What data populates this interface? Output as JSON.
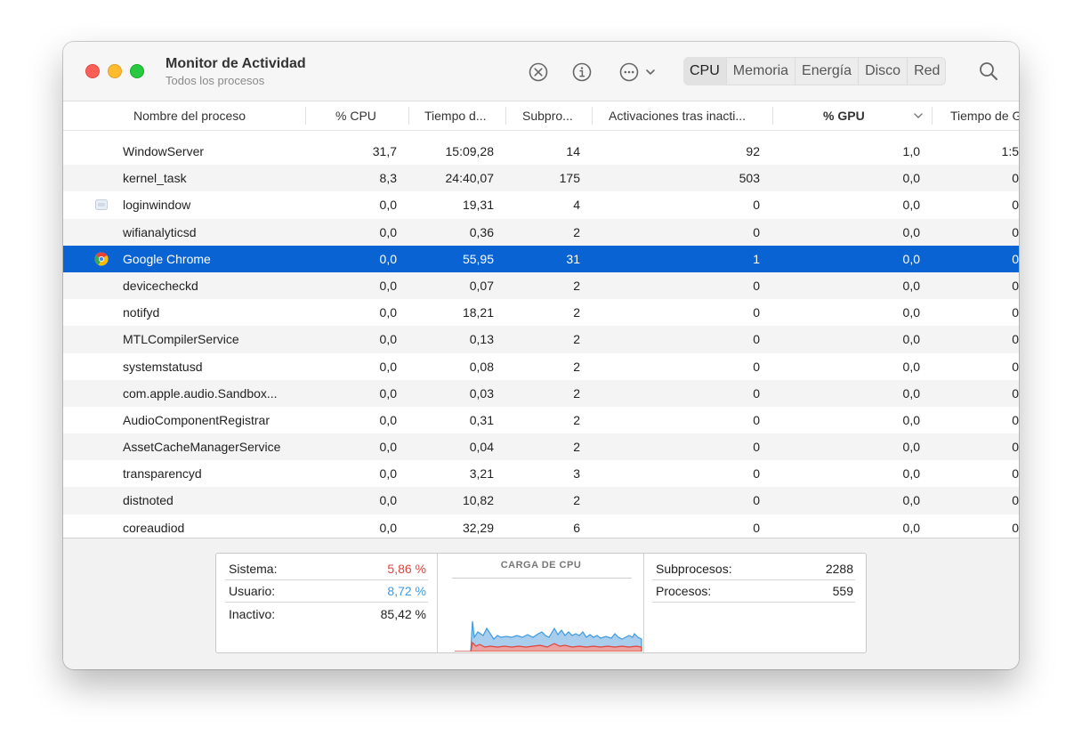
{
  "window": {
    "title": "Monitor de Actividad",
    "subtitle": "Todos los procesos"
  },
  "toolbar": {
    "stop_icon": "x-circle-icon",
    "info_icon": "info-icon",
    "more_icon": "ellipsis-circle-icon",
    "tabs": [
      "CPU",
      "Memoria",
      "Energía",
      "Disco",
      "Red"
    ],
    "active_tab": "CPU"
  },
  "columns": [
    "Nombre del proceso",
    "% CPU",
    "Tiempo d...",
    "Subpro...",
    "Activaciones tras inacti...",
    "% GPU",
    "Tiempo de G"
  ],
  "rows": [
    {
      "name": "WindowServer",
      "cpu": "31,7",
      "time": "15:09,28",
      "threads": "14",
      "wakeups": "92",
      "gpu": "1,0",
      "gputime": "1:5"
    },
    {
      "name": "kernel_task",
      "cpu": "8,3",
      "time": "24:40,07",
      "threads": "175",
      "wakeups": "503",
      "gpu": "0,0",
      "gputime": "0"
    },
    {
      "name": "loginwindow",
      "cpu": "0,0",
      "time": "19,31",
      "threads": "4",
      "wakeups": "0",
      "gpu": "0,0",
      "gputime": "0"
    },
    {
      "name": "wifianalyticsd",
      "cpu": "0,0",
      "time": "0,36",
      "threads": "2",
      "wakeups": "0",
      "gpu": "0,0",
      "gputime": "0"
    },
    {
      "name": "Google Chrome",
      "cpu": "0,0",
      "time": "55,95",
      "threads": "31",
      "wakeups": "1",
      "gpu": "0,0",
      "gputime": "0"
    },
    {
      "name": "devicecheckd",
      "cpu": "0,0",
      "time": "0,07",
      "threads": "2",
      "wakeups": "0",
      "gpu": "0,0",
      "gputime": "0"
    },
    {
      "name": "notifyd",
      "cpu": "0,0",
      "time": "18,21",
      "threads": "2",
      "wakeups": "0",
      "gpu": "0,0",
      "gputime": "0"
    },
    {
      "name": "MTLCompilerService",
      "cpu": "0,0",
      "time": "0,13",
      "threads": "2",
      "wakeups": "0",
      "gpu": "0,0",
      "gputime": "0"
    },
    {
      "name": "systemstatusd",
      "cpu": "0,0",
      "time": "0,08",
      "threads": "2",
      "wakeups": "0",
      "gpu": "0,0",
      "gputime": "0"
    },
    {
      "name": "com.apple.audio.Sandbox...",
      "cpu": "0,0",
      "time": "0,03",
      "threads": "2",
      "wakeups": "0",
      "gpu": "0,0",
      "gputime": "0"
    },
    {
      "name": "AudioComponentRegistrar",
      "cpu": "0,0",
      "time": "0,31",
      "threads": "2",
      "wakeups": "0",
      "gpu": "0,0",
      "gputime": "0"
    },
    {
      "name": "AssetCacheManagerService",
      "cpu": "0,0",
      "time": "0,04",
      "threads": "2",
      "wakeups": "0",
      "gpu": "0,0",
      "gputime": "0"
    },
    {
      "name": "transparencyd",
      "cpu": "0,0",
      "time": "3,21",
      "threads": "3",
      "wakeups": "0",
      "gpu": "0,0",
      "gputime": "0"
    },
    {
      "name": "distnoted",
      "cpu": "0,0",
      "time": "10,82",
      "threads": "2",
      "wakeups": "0",
      "gpu": "0,0",
      "gputime": "0"
    },
    {
      "name": "coreaudiod",
      "cpu": "0,0",
      "time": "32,29",
      "threads": "6",
      "wakeups": "0",
      "gpu": "0,0",
      "gputime": "0"
    }
  ],
  "selected_row": 4,
  "summary": {
    "sistema_label": "Sistema:",
    "sistema_value": "5,86 %",
    "usuario_label": "Usuario:",
    "usuario_value": "8,72 %",
    "inactivo_label": "Inactivo:",
    "inactivo_value": "85,42 %",
    "chart_title": "CARGA DE CPU",
    "subprocesos_label": "Subprocesos:",
    "subprocesos_value": "2288",
    "procesos_label": "Procesos:",
    "procesos_value": "559"
  },
  "colors": {
    "sistema": "#e0443e",
    "usuario": "#3d9be0",
    "selected": "#0a63d3"
  }
}
